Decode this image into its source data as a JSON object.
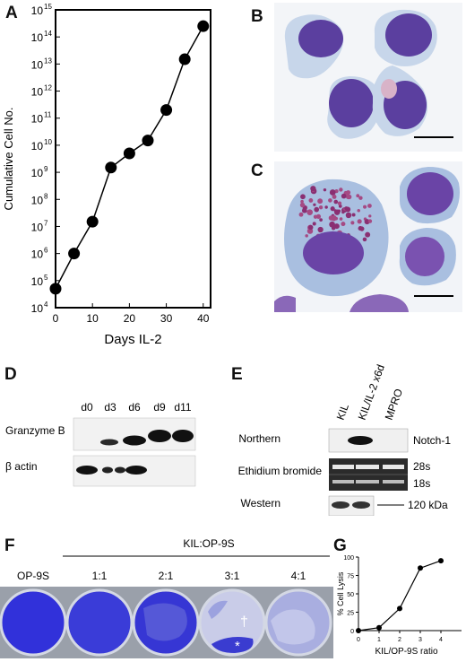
{
  "figure": {
    "panel_labels": {
      "A": "A",
      "B": "B",
      "C": "C",
      "D": "D",
      "E": "E",
      "F": "F",
      "G": "G"
    },
    "panelA": {
      "chart_data": {
        "type": "line",
        "xlabel": "Days IL-2",
        "ylabel": "Cumulative Cell No.",
        "x": [
          0,
          5,
          10,
          15,
          20,
          25,
          30,
          35,
          40
        ],
        "y": [
          50000,
          1000000,
          15000000,
          1500000000,
          5000000000,
          15000000000,
          200000000000,
          15000000000000,
          250000000000000
        ],
        "xticks": [
          "0",
          "10",
          "20",
          "30",
          "40"
        ],
        "yticks": [
          "10",
          "10",
          "10",
          "10",
          "10",
          "10",
          "10",
          "10",
          "10",
          "10",
          "10",
          "10"
        ],
        "yexponents": [
          "4",
          "5",
          "6",
          "7",
          "8",
          "9",
          "10",
          "11",
          "12",
          "13",
          "14",
          "15"
        ],
        "xlim": [
          0,
          42
        ],
        "ylim": [
          10000,
          1000000000000000
        ],
        "yscale": "log",
        "grid": false
      }
    },
    "panelD": {
      "lanes": [
        "d0",
        "d3",
        "d6",
        "d9",
        "d11"
      ],
      "rows": [
        "Granzyme B",
        "β actin"
      ]
    },
    "panelE": {
      "lanes": [
        "KIL",
        "KIL/IL-2 x6d",
        "MPRO"
      ],
      "rows": [
        "Northern",
        "Ethidium bromide",
        "Western"
      ],
      "right_labels": [
        "Notch-1",
        "28s",
        "18s",
        "120 kDa"
      ]
    },
    "panelF": {
      "group_label": "KIL:OP-9S",
      "wells": [
        "OP-9S",
        "1:1",
        "2:1",
        "3:1",
        "4:1"
      ],
      "marks": [
        "†",
        "*"
      ]
    },
    "panelG": {
      "chart_data": {
        "type": "line",
        "xlabel": "KIL/OP-9S ratio",
        "ylabel": "% Cell Lysis",
        "x": [
          0,
          1,
          2,
          3,
          4
        ],
        "y": [
          0,
          4,
          30,
          85,
          95
        ],
        "xticks": [
          "0",
          "1",
          "2",
          "3",
          "4"
        ],
        "yticks": [
          "0",
          "25",
          "50",
          "75",
          "100"
        ],
        "xlim": [
          0,
          5
        ],
        "ylim": [
          0,
          100
        ],
        "grid": false
      }
    },
    "colors": {
      "stain_blue": "#3030d8",
      "nucleus": "#5a3f9e",
      "cytoplasm": "#b9cde6"
    }
  }
}
